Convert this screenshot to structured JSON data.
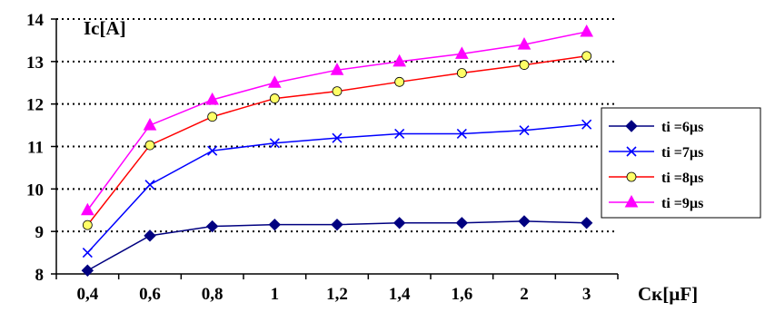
{
  "chart_data": {
    "type": "line",
    "title": "",
    "ylabel": "Ic[A]",
    "xlabel": "Cк[µF]",
    "categories": [
      "0,4",
      "0,6",
      "0,8",
      "1",
      "1,2",
      "1,4",
      "1,6",
      "2",
      "3"
    ],
    "ylim": [
      8,
      14
    ],
    "yticks": [
      "8",
      "9",
      "10",
      "11",
      "12",
      "13",
      "14"
    ],
    "grid": "horizontal dotted",
    "legend_position": "right",
    "series": [
      {
        "name": "ti =6µs",
        "marker": "diamond",
        "color": "#000080",
        "marker_fill": "#000080",
        "values": [
          8.08,
          8.9,
          9.12,
          9.16,
          9.16,
          9.2,
          9.2,
          9.24,
          9.2
        ]
      },
      {
        "name": "ti =7µs",
        "marker": "x",
        "color": "#0000ff",
        "marker_fill": "#0000ff",
        "values": [
          8.5,
          10.1,
          10.9,
          11.08,
          11.2,
          11.3,
          11.3,
          11.38,
          11.52
        ]
      },
      {
        "name": "ti =8µs",
        "marker": "circle",
        "color": "#ff0000",
        "marker_fill": "#ffff66",
        "values": [
          9.15,
          11.03,
          11.7,
          12.13,
          12.3,
          12.52,
          12.73,
          12.92,
          13.13
        ]
      },
      {
        "name": "ti =9µs",
        "marker": "triangle",
        "color": "#ff00ff",
        "marker_fill": "#ff00ff",
        "values": [
          9.5,
          11.5,
          12.1,
          12.5,
          12.8,
          13.0,
          13.18,
          13.4,
          13.7
        ]
      }
    ]
  }
}
